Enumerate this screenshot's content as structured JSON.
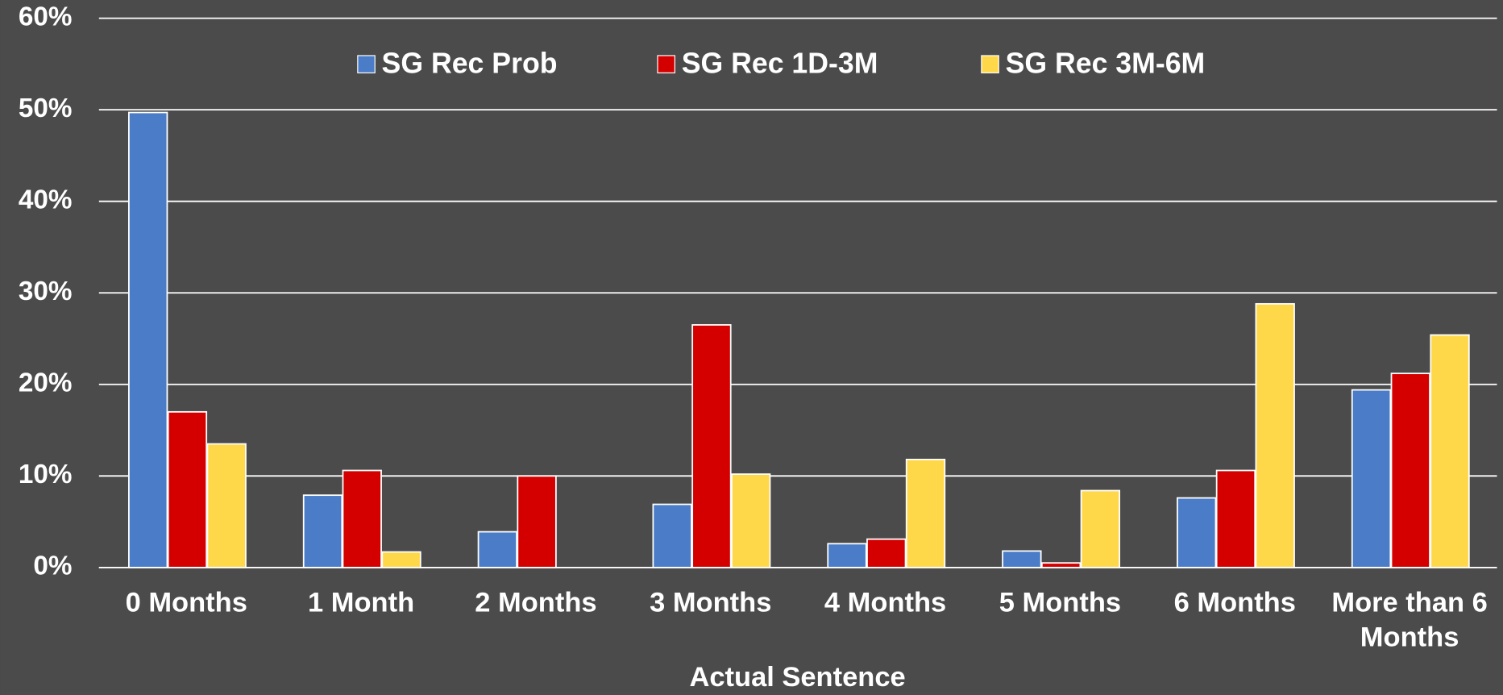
{
  "chart_data": {
    "type": "bar",
    "x_label": "Actual Sentence",
    "categories": [
      "0 Months",
      "1 Month",
      "2 Months",
      "3 Months",
      "4 Months",
      "5 Months",
      "6 Months",
      "More than 6 Months"
    ],
    "series": [
      {
        "name": "SG Rec Prob",
        "color": "#4a7cc7",
        "values": [
          49.7,
          7.9,
          3.9,
          6.9,
          2.6,
          1.8,
          7.6,
          19.4
        ]
      },
      {
        "name": "SG Rec 1D-3M",
        "color": "#d40000",
        "values": [
          17.0,
          10.6,
          10.0,
          26.5,
          3.1,
          0.5,
          10.6,
          21.2
        ]
      },
      {
        "name": "SG Rec 3M-6M",
        "color": "#ffd84a",
        "values": [
          13.5,
          1.7,
          0,
          10.2,
          11.8,
          8.4,
          28.8,
          25.4
        ]
      }
    ],
    "ylim": [
      0,
      60
    ],
    "yticks": [
      {
        "value": 0,
        "label": "0%"
      },
      {
        "value": 10,
        "label": "10%"
      },
      {
        "value": 20,
        "label": "20%"
      },
      {
        "value": 30,
        "label": "30%"
      },
      {
        "value": 40,
        "label": "40%"
      },
      {
        "value": 50,
        "label": "50%"
      },
      {
        "value": 60,
        "label": "60%"
      }
    ],
    "grid": true,
    "legend": "top"
  }
}
